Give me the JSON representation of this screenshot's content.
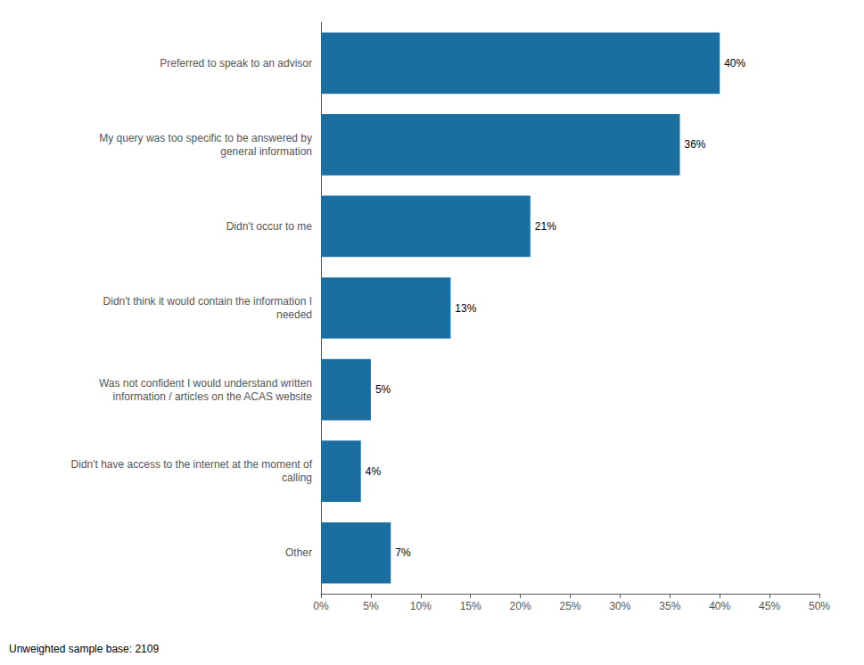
{
  "chart_data": {
    "type": "bar",
    "orientation": "horizontal",
    "categories": [
      "Preferred to speak to an advisor",
      "My query was too specific to be answered by\ngeneral information",
      "Didn't occur to me",
      "Didn't think it would contain the information I\nneeded",
      "Was not confident I would understand written\ninformation / articles on the ACAS website",
      "Didn't have access to the internet at the moment of\ncalling",
      "Other"
    ],
    "values": [
      40,
      36,
      21,
      13,
      5,
      4,
      7
    ],
    "value_labels": [
      "40%",
      "36%",
      "21%",
      "13%",
      "5%",
      "4%",
      "7%"
    ],
    "data_labels": true,
    "color": "#1a6fa0",
    "xlim": [
      0,
      50
    ],
    "xticks": [
      {
        "value": 0,
        "label": "0%"
      },
      {
        "value": 5,
        "label": "5%"
      },
      {
        "value": 10,
        "label": "10%"
      },
      {
        "value": 15,
        "label": "15%"
      },
      {
        "value": 20,
        "label": "20%"
      },
      {
        "value": 25,
        "label": "25%"
      },
      {
        "value": 30,
        "label": "30%"
      },
      {
        "value": 35,
        "label": "35%"
      },
      {
        "value": 40,
        "label": "40%"
      },
      {
        "value": 45,
        "label": "45%"
      },
      {
        "value": 50,
        "label": "50%"
      }
    ],
    "grid": false,
    "annotations": [
      "Unweighted sample base: 2109"
    ]
  }
}
